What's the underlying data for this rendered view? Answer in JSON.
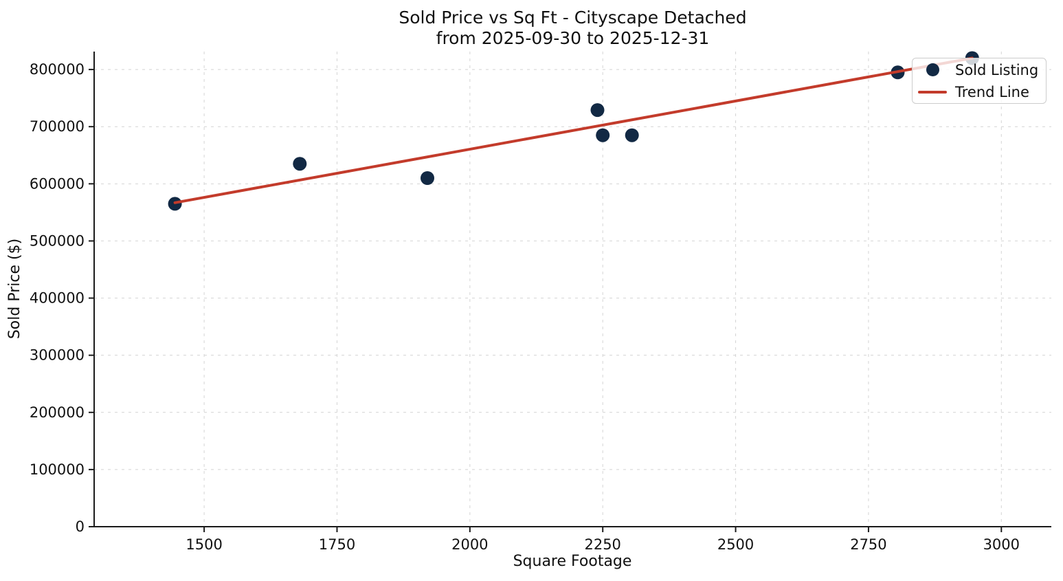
{
  "colors": {
    "point": "#122944",
    "trend": "#c33b2b",
    "grid": "#d4d4d4",
    "spine": "#1a1a1a",
    "text": "#111111",
    "legend_background": "rgba(255,255,255,0.8)",
    "legend_border": "#cccccc"
  },
  "chart_data": {
    "type": "scatter",
    "title": "Sold Price vs Sq Ft - Cityscape Detached",
    "subtitle": "from 2025-09-30 to 2025-12-31",
    "xlabel": "Square Footage",
    "ylabel": "Sold Price ($)",
    "xlim": [
      1293,
      3094
    ],
    "ylim": [
      0,
      831400
    ],
    "x_ticks": [
      1500,
      1750,
      2000,
      2250,
      2500,
      2750,
      3000
    ],
    "y_ticks": [
      0,
      100000,
      200000,
      300000,
      400000,
      500000,
      600000,
      700000,
      800000
    ],
    "grid": true,
    "legend_position": "upper right",
    "series": [
      {
        "name": "Sold Listing",
        "type": "scatter",
        "marker": "dot-icon",
        "points": [
          [
            1445,
            565000
          ],
          [
            1680,
            635000
          ],
          [
            1920,
            610000
          ],
          [
            2240,
            729000
          ],
          [
            2250,
            685000
          ],
          [
            2305,
            685000
          ],
          [
            2805,
            795000
          ],
          [
            2945,
            820000
          ]
        ]
      },
      {
        "name": "Trend Line",
        "type": "line",
        "marker": "line-icon",
        "points": [
          [
            1445,
            567000
          ],
          [
            2945,
            820000
          ]
        ]
      }
    ]
  }
}
